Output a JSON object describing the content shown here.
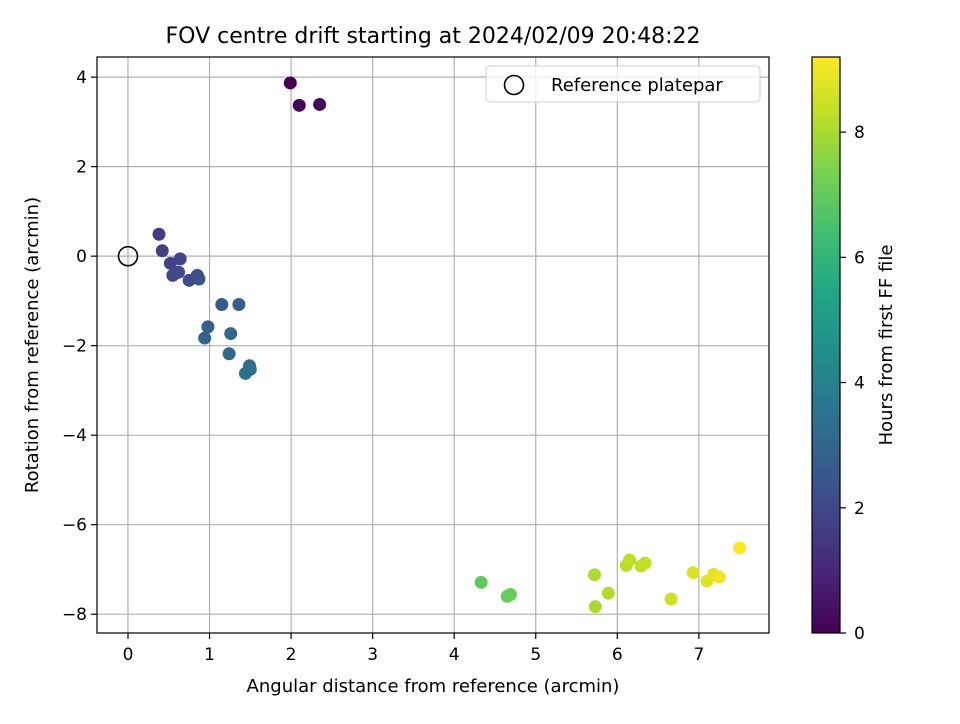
{
  "chart_data": {
    "type": "scatter",
    "title": "FOV centre drift starting at 2024/02/09 20:48:22",
    "xlabel": "Angular distance from reference (arcmin)",
    "ylabel": "Rotation from reference (arcmin)",
    "xlim": [
      -0.38,
      7.86
    ],
    "ylim": [
      -8.42,
      4.45
    ],
    "xticks": [
      0,
      1,
      2,
      3,
      4,
      5,
      6,
      7
    ],
    "yticks": [
      -8,
      -6,
      -4,
      -2,
      0,
      2,
      4
    ],
    "grid": true,
    "legend": {
      "position": "top-right",
      "entries": [
        {
          "label": "Reference platepar",
          "marker": "open-circle"
        }
      ]
    },
    "reference_point": {
      "x": 0,
      "y": 0,
      "marker": "open-circle",
      "color": "#000000"
    },
    "colorbar": {
      "label": "Hours from first FF file",
      "colormap": "viridis",
      "range": [
        0,
        9.2
      ],
      "ticks": [
        0,
        2,
        4,
        6,
        8
      ]
    },
    "points": [
      {
        "x": 1.99,
        "y": 3.87,
        "c": 0.0
      },
      {
        "x": 2.1,
        "y": 3.37,
        "c": 0.1
      },
      {
        "x": 2.35,
        "y": 3.39,
        "c": 0.2
      },
      {
        "x": 0.38,
        "y": 0.49,
        "c": 1.6
      },
      {
        "x": 0.42,
        "y": 0.12,
        "c": 1.7
      },
      {
        "x": 0.52,
        "y": -0.16,
        "c": 1.8
      },
      {
        "x": 0.64,
        "y": -0.06,
        "c": 1.85
      },
      {
        "x": 0.55,
        "y": -0.43,
        "c": 1.9
      },
      {
        "x": 0.58,
        "y": -0.38,
        "c": 1.95
      },
      {
        "x": 0.62,
        "y": -0.36,
        "c": 2.0
      },
      {
        "x": 0.75,
        "y": -0.54,
        "c": 2.1
      },
      {
        "x": 0.85,
        "y": -0.43,
        "c": 2.2
      },
      {
        "x": 0.87,
        "y": -0.51,
        "c": 2.3
      },
      {
        "x": 1.15,
        "y": -1.08,
        "c": 2.6
      },
      {
        "x": 1.36,
        "y": -1.08,
        "c": 2.7
      },
      {
        "x": 0.98,
        "y": -1.58,
        "c": 2.8
      },
      {
        "x": 0.94,
        "y": -1.83,
        "c": 2.9
      },
      {
        "x": 1.26,
        "y": -1.73,
        "c": 3.0
      },
      {
        "x": 1.24,
        "y": -2.18,
        "c": 3.1
      },
      {
        "x": 1.49,
        "y": -2.45,
        "c": 3.2
      },
      {
        "x": 1.5,
        "y": -2.53,
        "c": 3.3
      },
      {
        "x": 1.44,
        "y": -2.62,
        "c": 3.4
      },
      {
        "x": 4.33,
        "y": -7.29,
        "c": 6.9
      },
      {
        "x": 4.65,
        "y": -7.6,
        "c": 7.0
      },
      {
        "x": 4.69,
        "y": -7.56,
        "c": 7.05
      },
      {
        "x": 5.72,
        "y": -7.12,
        "c": 8.0
      },
      {
        "x": 5.73,
        "y": -7.83,
        "c": 8.0
      },
      {
        "x": 5.89,
        "y": -7.53,
        "c": 8.1
      },
      {
        "x": 6.11,
        "y": -6.91,
        "c": 8.2
      },
      {
        "x": 6.15,
        "y": -6.79,
        "c": 8.25
      },
      {
        "x": 6.29,
        "y": -6.92,
        "c": 8.3
      },
      {
        "x": 6.34,
        "y": -6.86,
        "c": 8.35
      },
      {
        "x": 6.66,
        "y": -7.66,
        "c": 8.5
      },
      {
        "x": 6.93,
        "y": -7.07,
        "c": 8.7
      },
      {
        "x": 7.1,
        "y": -7.26,
        "c": 8.8
      },
      {
        "x": 7.18,
        "y": -7.11,
        "c": 8.9
      },
      {
        "x": 7.25,
        "y": -7.17,
        "c": 9.0
      },
      {
        "x": 7.5,
        "y": -6.52,
        "c": 9.2
      }
    ]
  }
}
